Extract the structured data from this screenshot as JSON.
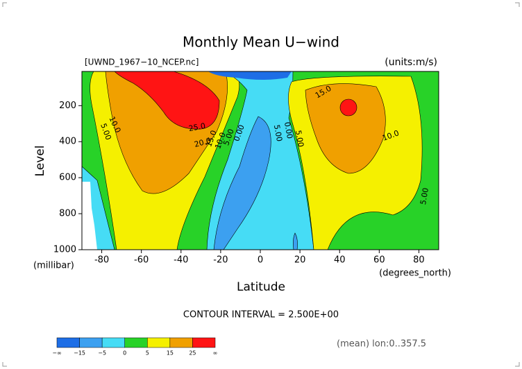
{
  "chart_data": {
    "type": "contour",
    "title": "Monthly Mean U−wind",
    "subtitle_left": "[UWND_1967−10_NCEP.nc]",
    "subtitle_right": "(units:m/s)",
    "x_label": "Latitude",
    "x_unit": "(degrees_north)",
    "y_label": "Level",
    "y_unit": "(millibar)",
    "xlim": [
      -90,
      90
    ],
    "xticks": [
      -80,
      -60,
      -40,
      -20,
      0,
      20,
      40,
      60,
      80
    ],
    "ylim": [
      1000,
      10
    ],
    "yticks": [
      200,
      400,
      600,
      800,
      1000
    ],
    "contour_interval": "CONTOUR INTERVAL = 2.500E+00",
    "footer": "(mean) lon:0..357.5",
    "contour_labels": [
      "5.00",
      "10.0",
      "25.0",
      "20.0",
      "15.0",
      "10.0",
      "5.00",
      "0.00",
      "5.00",
      "0.00",
      "5.00",
      "15.0",
      "10.0",
      "5.00"
    ],
    "colorbar": {
      "labels": [
        "−∞",
        "−15",
        "−5",
        "0",
        "5",
        "15",
        "25",
        "∞"
      ],
      "colors": [
        "#1e6ee6",
        "#3ca0f0",
        "#46dcf5",
        "#28d228",
        "#f5f000",
        "#f0a000",
        "#ff1414"
      ]
    }
  }
}
